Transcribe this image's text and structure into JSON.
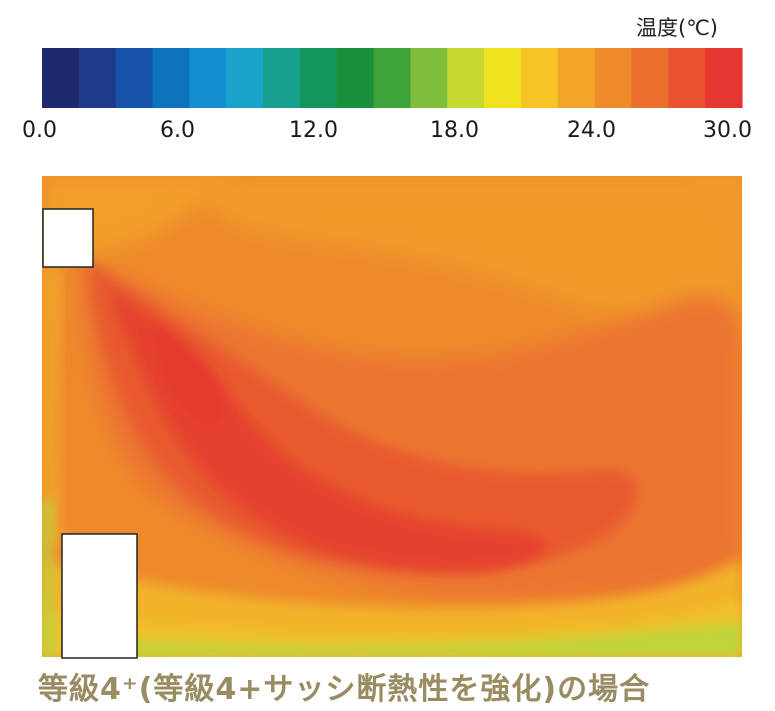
{
  "legend": {
    "unit_label": "温度(℃)",
    "ticks": [
      "0.0",
      "6.0",
      "12.0",
      "18.0",
      "24.0",
      "30.0"
    ],
    "stops": [
      "#1f2a6e",
      "#1e3a8a",
      "#1553a8",
      "#0f72bd",
      "#1490cf",
      "#1aa2c9",
      "#16a28e",
      "#14955a",
      "#1a8f3a",
      "#3da33a",
      "#7fbe3b",
      "#c5d830",
      "#f0e21e",
      "#f7c325",
      "#f3a528",
      "#ef8a2a",
      "#ec702d",
      "#e9532f",
      "#e43530"
    ]
  },
  "chart_data": {
    "type": "heatmap",
    "unit": "℃",
    "scale_range": [
      0.0,
      30.0
    ],
    "tick_values": [
      0,
      6,
      12,
      18,
      24,
      30
    ],
    "description_level": "temperature contour field, values approx 20–29 ℃"
  },
  "caption": "等級4⁺(等級4+サッシ断熱性を強化)の場合"
}
